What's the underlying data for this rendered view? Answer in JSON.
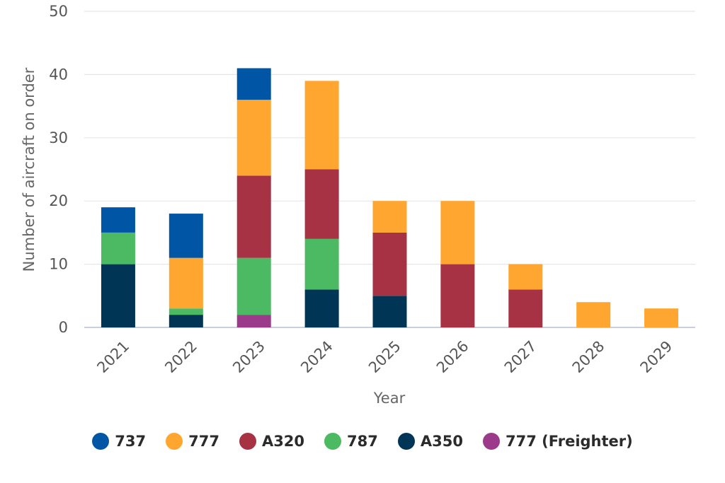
{
  "chart_data": {
    "type": "bar",
    "stacked": true,
    "xlabel": "Year",
    "ylabel": "Number of aircraft on order",
    "ylim": [
      0,
      50
    ],
    "yticks": [
      0,
      10,
      20,
      30,
      40,
      50
    ],
    "categories": [
      "2021",
      "2022",
      "2023",
      "2024",
      "2025",
      "2026",
      "2027",
      "2028",
      "2029"
    ],
    "series": [
      {
        "name": "777 (Freighter)",
        "color": "#9b3a8a",
        "values": [
          0,
          0,
          2,
          0,
          0,
          0,
          0,
          0,
          0
        ]
      },
      {
        "name": "A350",
        "color": "#003556",
        "values": [
          10,
          2,
          0,
          6,
          5,
          0,
          0,
          0,
          0
        ]
      },
      {
        "name": "787",
        "color": "#4cba62",
        "values": [
          5,
          1,
          9,
          8,
          0,
          0,
          0,
          0,
          0
        ]
      },
      {
        "name": "A320",
        "color": "#a63244",
        "values": [
          0,
          0,
          13,
          11,
          10,
          10,
          6,
          0,
          0
        ]
      },
      {
        "name": "777",
        "color": "#ffa630",
        "values": [
          0,
          8,
          12,
          14,
          5,
          10,
          4,
          4,
          3
        ]
      },
      {
        "name": "737",
        "color": "#0055a4",
        "values": [
          4,
          7,
          5,
          0,
          0,
          0,
          0,
          0,
          0
        ]
      }
    ],
    "legend_order": [
      "737",
      "777",
      "A320",
      "787",
      "A350",
      "777 (Freighter)"
    ],
    "legend_position": "bottom",
    "grid": true
  }
}
